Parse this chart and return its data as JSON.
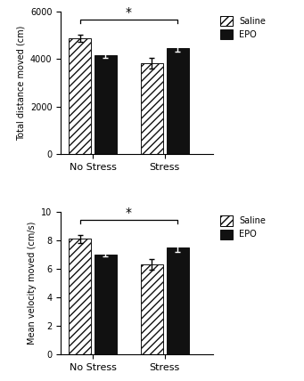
{
  "top_panel": {
    "groups": [
      "No Stress",
      "Stress"
    ],
    "saline_means": [
      4870,
      3820
    ],
    "epo_means": [
      4150,
      4450
    ],
    "saline_errors": [
      150,
      220
    ],
    "epo_errors": [
      95,
      130
    ],
    "ylabel": "Total distance moved (cm)",
    "ylim": [
      0,
      6000
    ],
    "yticks": [
      0,
      2000,
      4000,
      6000
    ],
    "sig_bracket_y": 5650,
    "sig_label": "*"
  },
  "bottom_panel": {
    "groups": [
      "No Stress",
      "Stress"
    ],
    "saline_means": [
      8.1,
      6.3
    ],
    "epo_means": [
      7.0,
      7.5
    ],
    "saline_errors": [
      0.28,
      0.4
    ],
    "epo_errors": [
      0.12,
      0.35
    ],
    "ylabel": "Mean velocity moved (cm/s)",
    "ylim": [
      0,
      10
    ],
    "yticks": [
      0,
      2,
      4,
      6,
      8,
      10
    ],
    "sig_bracket_y": 9.4,
    "sig_label": "*"
  },
  "bar_width": 0.28,
  "group_centers": [
    0.85,
    1.75
  ],
  "bar_gap": 0.04,
  "saline_color": "white",
  "saline_hatch": "////",
  "epo_color": "#111111",
  "epo_edgecolor": "#111111",
  "saline_edgecolor": "#111111",
  "legend_labels": [
    "Saline",
    "EPO"
  ],
  "fontsize": 8,
  "tick_fontsize": 7,
  "xlim": [
    0.45,
    2.35
  ]
}
